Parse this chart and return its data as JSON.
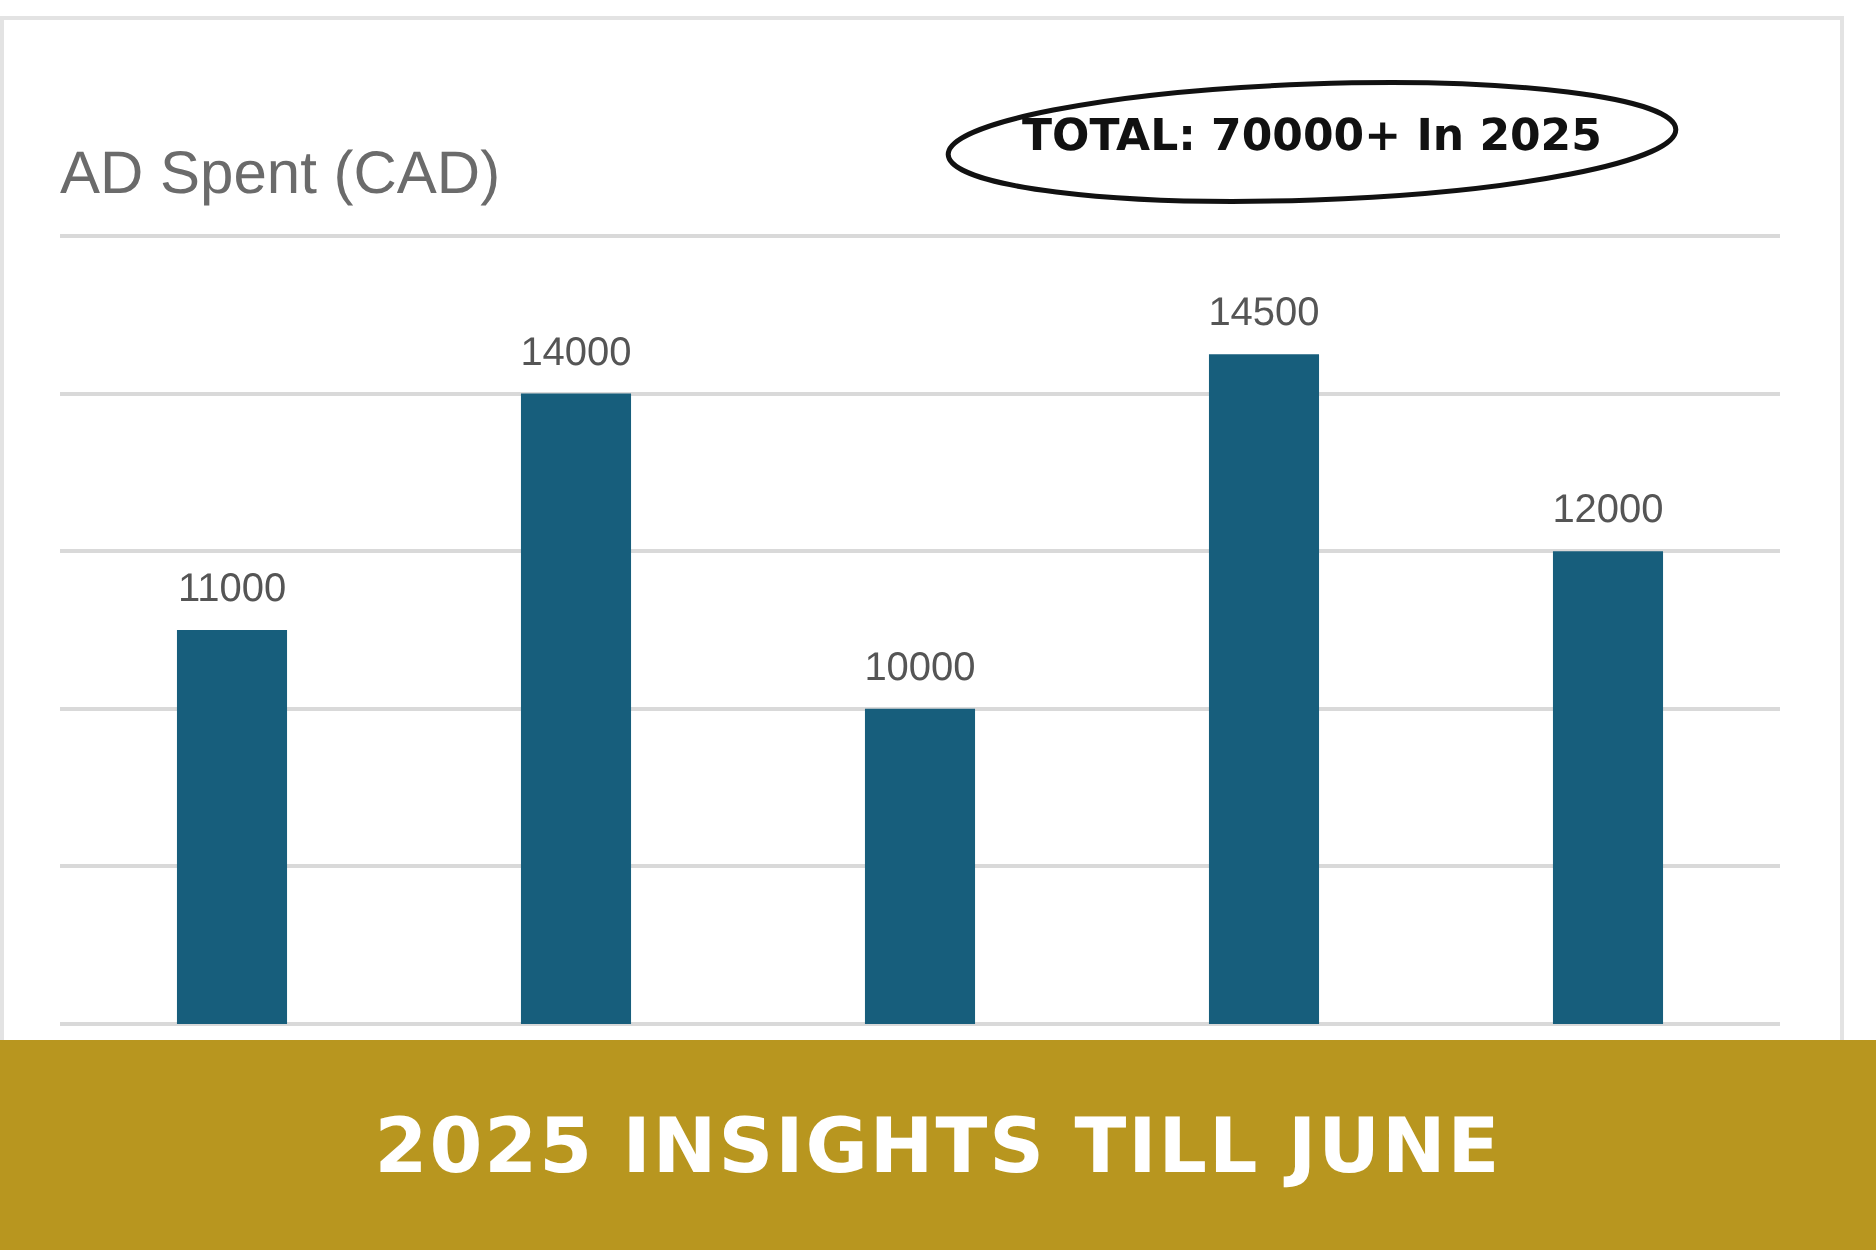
{
  "chart_data": {
    "type": "bar",
    "title": "AD Spent (CAD)",
    "subtitle": "2025 INSIGHTS TILL JUNE",
    "annotations": [
      "TOTAL: 70000+ In 2025"
    ],
    "categories": [
      null,
      null,
      null,
      null,
      null
    ],
    "values": [
      11000,
      14000,
      10000,
      14500,
      12000
    ],
    "color": "#175e7c",
    "ylim": [
      6000,
      16000
    ],
    "yticks": [
      6000,
      8000,
      10000,
      12000,
      14000,
      16000
    ],
    "grid": "y",
    "tick_labels": false,
    "data_labels": true,
    "legend": false
  }
}
